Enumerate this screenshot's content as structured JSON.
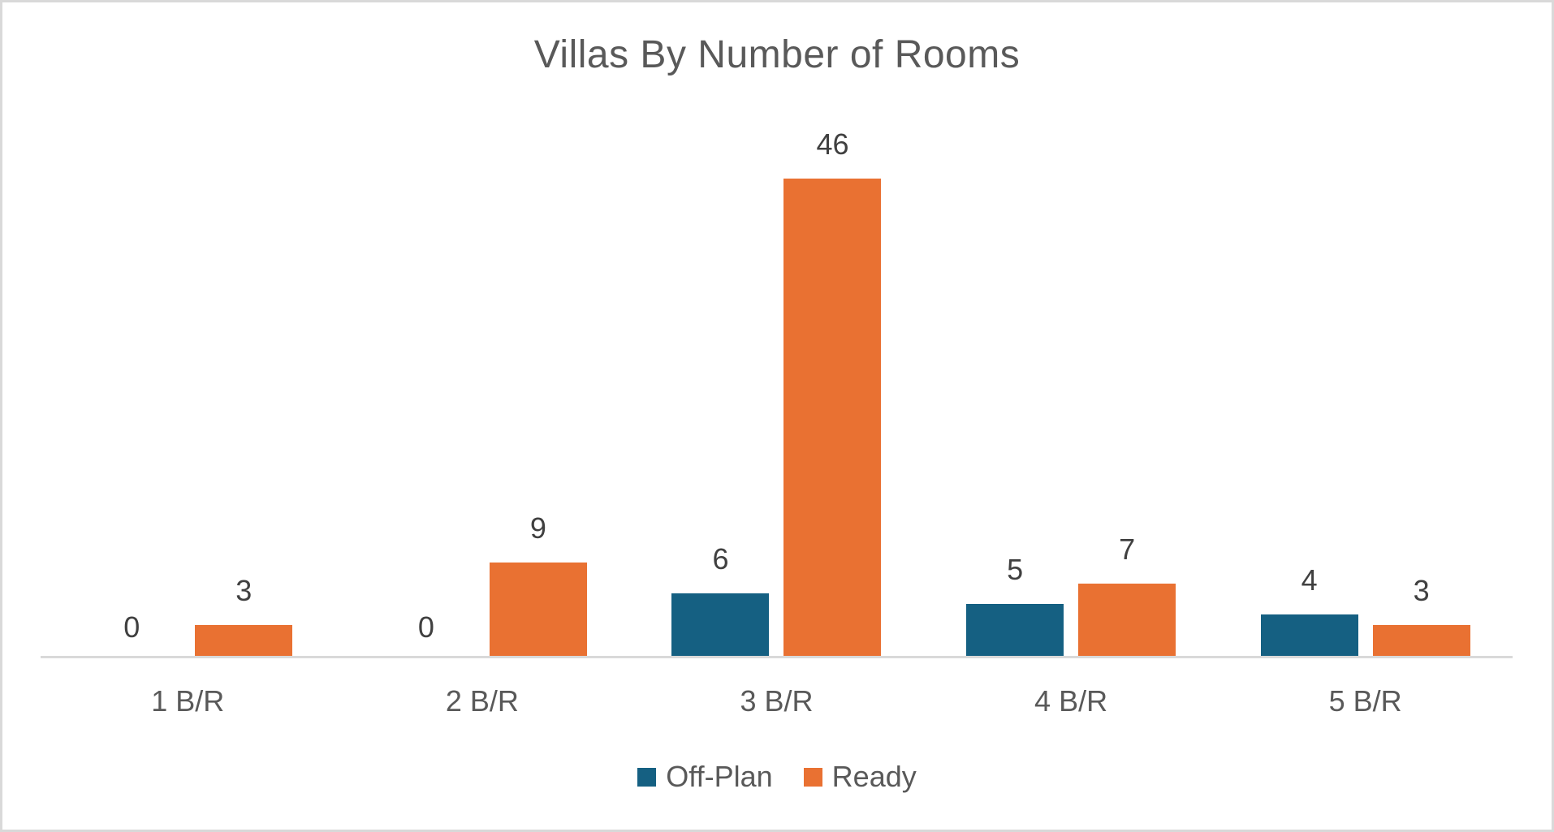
{
  "chart_data": {
    "type": "bar",
    "title": "Villas By Number of Rooms",
    "categories": [
      "1 B/R",
      "2 B/R",
      "3 B/R",
      "4 B/R",
      "5 B/R"
    ],
    "series": [
      {
        "name": "Off-Plan",
        "color": "#156082",
        "values": [
          0,
          0,
          6,
          5,
          4
        ]
      },
      {
        "name": "Ready",
        "color": "#E97132",
        "values": [
          3,
          9,
          46,
          7,
          3
        ]
      }
    ],
    "data_labels": "outside-end",
    "legend_position": "bottom",
    "y_axis": {
      "visible": false
    },
    "x_axis": {
      "visible": true,
      "line_only": true
    }
  },
  "styles": {
    "title_color": "#595959",
    "data_label_color": "#404040",
    "axis_label_color": "#595959",
    "legend_text_color": "#595959",
    "axis_line_color": "#D9D9D9",
    "frame_border_color": "#D9D9D9",
    "background": "#FFFFFF"
  }
}
